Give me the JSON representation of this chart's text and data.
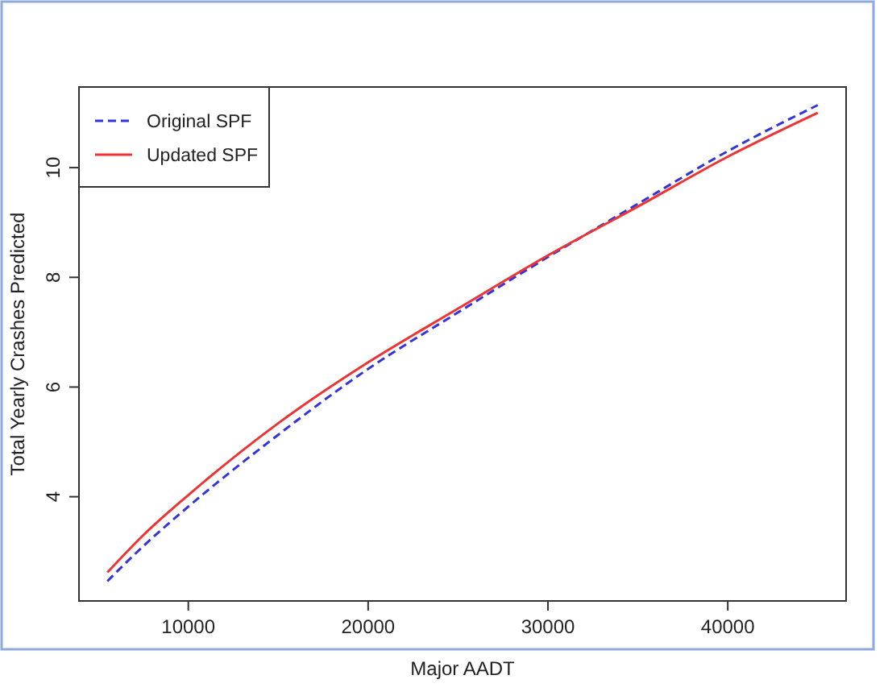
{
  "chart_data": {
    "type": "line",
    "xlabel": "Major AADT",
    "ylabel": "Total Yearly Crashes Predicted",
    "x": [
      5500,
      7500,
      10000,
      15000,
      20000,
      25000,
      30000,
      35000,
      40000,
      45000
    ],
    "series": [
      {
        "name": "Original SPF",
        "color": "#3333dd",
        "line_style": "dashed",
        "values": [
          2.46,
          3.1,
          3.82,
          5.13,
          6.33,
          7.36,
          8.37,
          9.34,
          10.3,
          11.14
        ]
      },
      {
        "name": "Updated SPF",
        "color": "#ee3333",
        "line_style": "solid",
        "values": [
          2.62,
          3.3,
          4.03,
          5.34,
          6.45,
          7.43,
          8.4,
          9.29,
          10.2,
          11.0
        ]
      }
    ],
    "xlim": [
      3920,
      46580
    ],
    "ylim": [
      2.1,
      11.47
    ],
    "xticks": [
      10000,
      20000,
      30000,
      40000
    ],
    "yticks": [
      4,
      6,
      8,
      10
    ],
    "grid": false,
    "legend": "top left",
    "marker": "none"
  }
}
